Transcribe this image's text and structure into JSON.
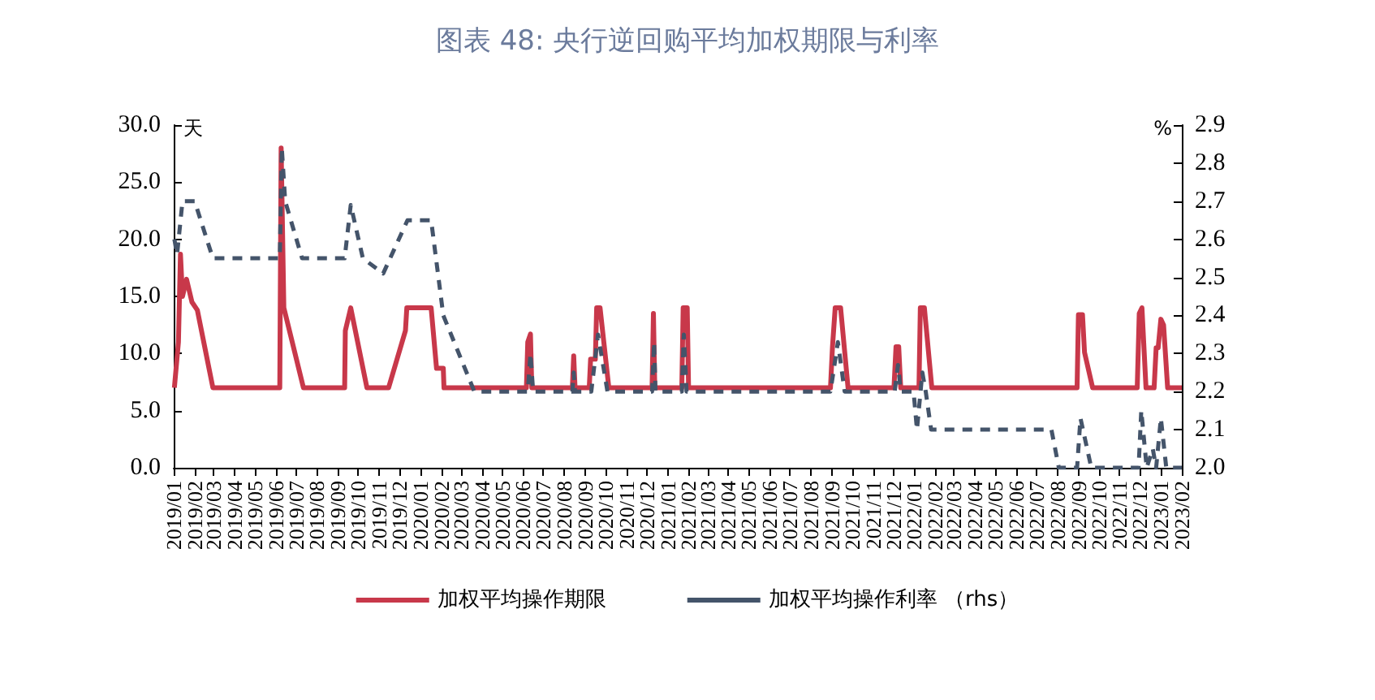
{
  "chart_data": {
    "type": "line",
    "title": "图表 48: 央行逆回购平均加权期限与利率",
    "ylabel": "天",
    "y2label": "%",
    "xlim": [
      "2019-01-01",
      "2023-02-01"
    ],
    "xticks": [
      {
        "value": "2019-01",
        "label": "2019/01"
      },
      {
        "value": "2019-02",
        "label": "2019/02"
      },
      {
        "value": "2019-03",
        "label": "2019/03"
      },
      {
        "value": "2019-04",
        "label": "2019/04"
      },
      {
        "value": "2019-05",
        "label": "2019/05"
      },
      {
        "value": "2019-06",
        "label": "2019/06"
      },
      {
        "value": "2019-07",
        "label": "2019/07"
      },
      {
        "value": "2019-08",
        "label": "2019/08"
      },
      {
        "value": "2019-09",
        "label": "2019/09"
      },
      {
        "value": "2019-10",
        "label": "2019/10"
      },
      {
        "value": "2019-11",
        "label": "2019/11"
      },
      {
        "value": "2019-12",
        "label": "2019/12"
      },
      {
        "value": "2020-01",
        "label": "2020/01"
      },
      {
        "value": "2020-02",
        "label": "2020/02"
      },
      {
        "value": "2020-03",
        "label": "2020/03"
      },
      {
        "value": "2020-04",
        "label": "2020/04"
      },
      {
        "value": "2020-05",
        "label": "2020/05"
      },
      {
        "value": "2020-06",
        "label": "2020/06"
      },
      {
        "value": "2020-07",
        "label": "2020/07"
      },
      {
        "value": "2020-08",
        "label": "2020/08"
      },
      {
        "value": "2020-09",
        "label": "2020/09"
      },
      {
        "value": "2020-10",
        "label": "2020/10"
      },
      {
        "value": "2020-11",
        "label": "2020/11"
      },
      {
        "value": "2020-12",
        "label": "2020/12"
      },
      {
        "value": "2021-01",
        "label": "2021/01"
      },
      {
        "value": "2021-02",
        "label": "2021/02"
      },
      {
        "value": "2021-03",
        "label": "2021/03"
      },
      {
        "value": "2021-04",
        "label": "2021/04"
      },
      {
        "value": "2021-05",
        "label": "2021/05"
      },
      {
        "value": "2021-06",
        "label": "2021/06"
      },
      {
        "value": "2021-07",
        "label": "2021/07"
      },
      {
        "value": "2021-08",
        "label": "2021/08"
      },
      {
        "value": "2021-09",
        "label": "2021/09"
      },
      {
        "value": "2021-10",
        "label": "2021/10"
      },
      {
        "value": "2021-11",
        "label": "2021/11"
      },
      {
        "value": "2021-12",
        "label": "2021/12"
      },
      {
        "value": "2022-01",
        "label": "2022/01"
      },
      {
        "value": "2022-02",
        "label": "2022/02"
      },
      {
        "value": "2022-03",
        "label": "2022/03"
      },
      {
        "value": "2022-04",
        "label": "2022/04"
      },
      {
        "value": "2022-05",
        "label": "2022/05"
      },
      {
        "value": "2022-06",
        "label": "2022/06"
      },
      {
        "value": "2022-07",
        "label": "2022/07"
      },
      {
        "value": "2022-08",
        "label": "2022/08"
      },
      {
        "value": "2022-09",
        "label": "2022/09"
      },
      {
        "value": "2022-10",
        "label": "2022/10"
      },
      {
        "value": "2022-11",
        "label": "2022/11"
      },
      {
        "value": "2022-12",
        "label": "2022/12"
      },
      {
        "value": "2023-01",
        "label": "2023/01"
      },
      {
        "value": "2023-02",
        "label": "2023/02"
      }
    ],
    "ylim": [
      0,
      30
    ],
    "yticks": [
      {
        "value": 0,
        "label": "0.0"
      },
      {
        "value": 5,
        "label": "5.0"
      },
      {
        "value": 10,
        "label": "10.0"
      },
      {
        "value": 15,
        "label": "15.0"
      },
      {
        "value": 20,
        "label": "20.0"
      },
      {
        "value": 25,
        "label": "25.0"
      },
      {
        "value": 30,
        "label": "30.0"
      }
    ],
    "y2lim": [
      2.0,
      2.9
    ],
    "y2ticks": [
      {
        "value": 2.0,
        "label": "2.0"
      },
      {
        "value": 2.1,
        "label": "2.1"
      },
      {
        "value": 2.2,
        "label": "2.2"
      },
      {
        "value": 2.3,
        "label": "2.3"
      },
      {
        "value": 2.4,
        "label": "2.4"
      },
      {
        "value": 2.5,
        "label": "2.5"
      },
      {
        "value": 2.6,
        "label": "2.6"
      },
      {
        "value": 2.7,
        "label": "2.7"
      },
      {
        "value": 2.8,
        "label": "2.8"
      },
      {
        "value": 2.9,
        "label": "2.9"
      }
    ],
    "grid": false,
    "legend": "bottom",
    "marker": "none",
    "series": [
      {
        "name": "加权平均操作期限",
        "color": "#c8384a",
        "line_style": "solid",
        "x": [
          "2019-01-02",
          "2019-01-08",
          "2019-01-11",
          "2019-01-14",
          "2019-01-20",
          "2019-01-28",
          "2019-02-05",
          "2019-02-28",
          "2019-06-07",
          "2019-06-09",
          "2019-06-13",
          "2019-07-12",
          "2019-09-11",
          "2019-09-12",
          "2019-09-20",
          "2019-10-14",
          "2019-11-15",
          "2019-12-10",
          "2019-12-12",
          "2020-01-17",
          "2020-01-25",
          "2020-02-04",
          "2020-02-05",
          "2020-06-06",
          "2020-06-08",
          "2020-06-12",
          "2020-06-14",
          "2020-08-13",
          "2020-08-15",
          "2020-08-17",
          "2020-09-07",
          "2020-09-09",
          "2020-09-16",
          "2020-09-18",
          "2020-09-23",
          "2020-10-06",
          "2020-12-09",
          "2020-12-11",
          "2020-12-13",
          "2021-01-22",
          "2021-01-24",
          "2021-01-30",
          "2021-02-01",
          "2021-08-30",
          "2021-09-02",
          "2021-09-06",
          "2021-09-14",
          "2021-09-25",
          "2021-12-02",
          "2021-12-05",
          "2021-12-09",
          "2021-12-12",
          "2022-01-08",
          "2022-01-10",
          "2022-01-16",
          "2022-01-27",
          "2022-08-30",
          "2022-09-01",
          "2022-09-07",
          "2022-09-10",
          "2022-09-22",
          "2022-11-27",
          "2022-11-30",
          "2022-12-04",
          "2022-12-10",
          "2022-12-22",
          "2022-12-25",
          "2022-12-28",
          "2023-01-01",
          "2023-01-05",
          "2023-01-11",
          "2023-02-01"
        ],
        "values": [
          7,
          11,
          18.7,
          15,
          16.5,
          14.5,
          13.8,
          7,
          7,
          28,
          14,
          7,
          7,
          12,
          14,
          7,
          7,
          12,
          14,
          14,
          8.7,
          8.7,
          7,
          7,
          11,
          11.7,
          7,
          7,
          9.8,
          7,
          7,
          9.5,
          9.5,
          14,
          14,
          7,
          7,
          13.5,
          7,
          7,
          14,
          14,
          7,
          7,
          10.6,
          14,
          14,
          7,
          7,
          10.6,
          10.6,
          7,
          7,
          14,
          14,
          7,
          7,
          13.4,
          13.4,
          10.1,
          7,
          7,
          13.5,
          14,
          7,
          7,
          10.5,
          10.5,
          13,
          12.5,
          7,
          7
        ]
      },
      {
        "name": "加权平均操作利率 （rhs）",
        "color": "#44546a",
        "line_style": "dashed",
        "axis": "y2",
        "x": [
          "2019-01-02",
          "2019-01-06",
          "2019-01-14",
          "2019-02-01",
          "2019-02-28",
          "2019-06-07",
          "2019-06-10",
          "2019-06-15",
          "2019-07-10",
          "2019-09-11",
          "2019-09-20",
          "2019-10-08",
          "2019-11-07",
          "2019-12-13",
          "2020-01-17",
          "2020-02-04",
          "2020-03-21",
          "2020-06-08",
          "2020-06-12",
          "2020-06-16",
          "2020-08-13",
          "2020-08-15",
          "2020-08-17",
          "2020-09-10",
          "2020-09-20",
          "2020-10-04",
          "2020-12-09",
          "2020-12-12",
          "2020-12-14",
          "2021-01-22",
          "2021-01-25",
          "2021-01-29",
          "2021-08-30",
          "2021-09-10",
          "2021-09-20",
          "2021-12-03",
          "2021-12-08",
          "2021-12-12",
          "2021-12-31",
          "2022-01-05",
          "2022-01-13",
          "2022-01-18",
          "2022-01-26",
          "2022-07-23",
          "2022-08-03",
          "2022-08-30",
          "2022-09-04",
          "2022-09-20",
          "2022-11-29",
          "2022-12-03",
          "2022-12-11",
          "2022-12-20",
          "2022-12-25",
          "2023-01-01",
          "2023-01-09",
          "2023-02-01"
        ],
        "values": [
          2.6,
          2.56,
          2.7,
          2.7,
          2.55,
          2.55,
          2.84,
          2.7,
          2.55,
          2.55,
          2.69,
          2.55,
          2.51,
          2.65,
          2.65,
          2.4,
          2.2,
          2.2,
          2.3,
          2.2,
          2.2,
          2.25,
          2.2,
          2.2,
          2.35,
          2.2,
          2.2,
          2.33,
          2.2,
          2.2,
          2.35,
          2.2,
          2.2,
          2.33,
          2.2,
          2.2,
          2.27,
          2.2,
          2.2,
          2.1,
          2.25,
          2.2,
          2.1,
          2.1,
          2.0,
          2.0,
          2.13,
          2.0,
          2.0,
          2.15,
          2.0,
          2.05,
          2.0,
          2.13,
          2.0,
          2.0
        ]
      }
    ]
  }
}
